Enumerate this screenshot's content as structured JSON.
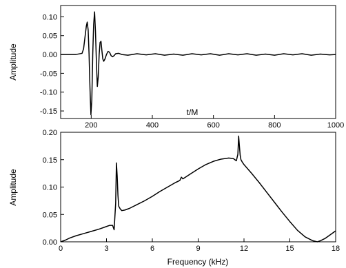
{
  "chart_data": [
    {
      "type": "line",
      "title": "",
      "xlabel": "t/M",
      "ylabel": "Amplitude",
      "xlim": [
        100,
        1000
      ],
      "ylim": [
        -0.17,
        0.13
      ],
      "x_ticks": [
        200,
        400,
        600,
        800,
        1000
      ],
      "x_tick_labels": [
        "200",
        "400",
        "600",
        "800",
        "1000"
      ],
      "y_ticks": [
        -0.15,
        -0.1,
        -0.05,
        0.0,
        0.05,
        0.1
      ],
      "y_tick_labels": [
        "-0.15",
        "-0.10",
        "-0.05",
        "0.00",
        "0.05",
        "0.10"
      ],
      "grid": false,
      "legend": "none",
      "series": [
        {
          "color": "#000000",
          "x": [
            100,
            150,
            170,
            175,
            178,
            181,
            184,
            187,
            190,
            193,
            196,
            199,
            202,
            205,
            208,
            211,
            214,
            217,
            220,
            223,
            226,
            229,
            232,
            235,
            238,
            241,
            245,
            250,
            255,
            260,
            265,
            270,
            275,
            280,
            290,
            300,
            320,
            350,
            380,
            410,
            440,
            470,
            500,
            530,
            560,
            590,
            620,
            650,
            680,
            710,
            740,
            770,
            800,
            830,
            860,
            890,
            920,
            950,
            980,
            1000
          ],
          "y": [
            0.0,
            0.0,
            0.003,
            0.015,
            0.035,
            0.055,
            0.075,
            0.086,
            0.065,
            0.0,
            -0.09,
            -0.16,
            -0.12,
            0.0,
            0.08,
            0.113,
            0.06,
            -0.02,
            -0.085,
            -0.06,
            0.0,
            0.032,
            0.035,
            0.01,
            -0.012,
            -0.018,
            -0.012,
            0.0,
            0.008,
            0.006,
            -0.003,
            -0.006,
            -0.003,
            0.002,
            0.003,
            0.0,
            -0.002,
            0.002,
            -0.001,
            0.002,
            -0.002,
            0.001,
            -0.002,
            0.002,
            -0.001,
            0.002,
            -0.002,
            0.002,
            -0.001,
            0.002,
            -0.002,
            0.001,
            -0.002,
            0.002,
            -0.001,
            0.002,
            -0.002,
            0.001,
            -0.001,
            0.0
          ]
        }
      ]
    },
    {
      "type": "line",
      "title": "",
      "xlabel": "Frequency (kHz)",
      "ylabel": "Amplitude",
      "xlim": [
        0,
        18
      ],
      "ylim": [
        0.0,
        0.2
      ],
      "x_ticks": [
        0,
        3,
        6,
        9,
        12,
        15,
        18
      ],
      "x_tick_labels": [
        "0",
        "3",
        "6",
        "9",
        "12",
        "15",
        "18"
      ],
      "y_ticks": [
        0.0,
        0.05,
        0.1,
        0.15,
        0.2
      ],
      "y_tick_labels": [
        "0.00",
        "0.05",
        "0.10",
        "0.15",
        "0.20"
      ],
      "grid": false,
      "legend": "none",
      "series": [
        {
          "color": "#000000",
          "x": [
            0.0,
            0.3,
            0.6,
            1.0,
            1.5,
            2.0,
            2.5,
            3.0,
            3.2,
            3.4,
            3.5,
            3.6,
            3.65,
            3.7,
            3.75,
            3.8,
            3.9,
            4.0,
            4.2,
            4.5,
            5.0,
            5.5,
            6.0,
            6.5,
            7.0,
            7.5,
            7.8,
            7.9,
            8.0,
            8.5,
            9.0,
            9.5,
            10.0,
            10.5,
            11.0,
            11.3,
            11.5,
            11.6,
            11.65,
            11.7,
            11.75,
            11.8,
            11.9,
            12.0,
            12.5,
            13.0,
            13.5,
            14.0,
            14.5,
            15.0,
            15.5,
            16.0,
            16.5,
            16.8,
            17.0,
            17.3,
            17.6,
            18.0
          ],
          "y": [
            0.0,
            0.003,
            0.007,
            0.011,
            0.015,
            0.019,
            0.023,
            0.028,
            0.03,
            0.03,
            0.022,
            0.07,
            0.144,
            0.12,
            0.085,
            0.065,
            0.06,
            0.057,
            0.058,
            0.061,
            0.068,
            0.075,
            0.083,
            0.092,
            0.1,
            0.108,
            0.112,
            0.118,
            0.115,
            0.124,
            0.133,
            0.141,
            0.147,
            0.151,
            0.153,
            0.152,
            0.148,
            0.16,
            0.193,
            0.175,
            0.158,
            0.15,
            0.145,
            0.141,
            0.125,
            0.108,
            0.09,
            0.072,
            0.054,
            0.037,
            0.021,
            0.009,
            0.002,
            0.0,
            0.002,
            0.006,
            0.012,
            0.02
          ]
        }
      ]
    }
  ]
}
